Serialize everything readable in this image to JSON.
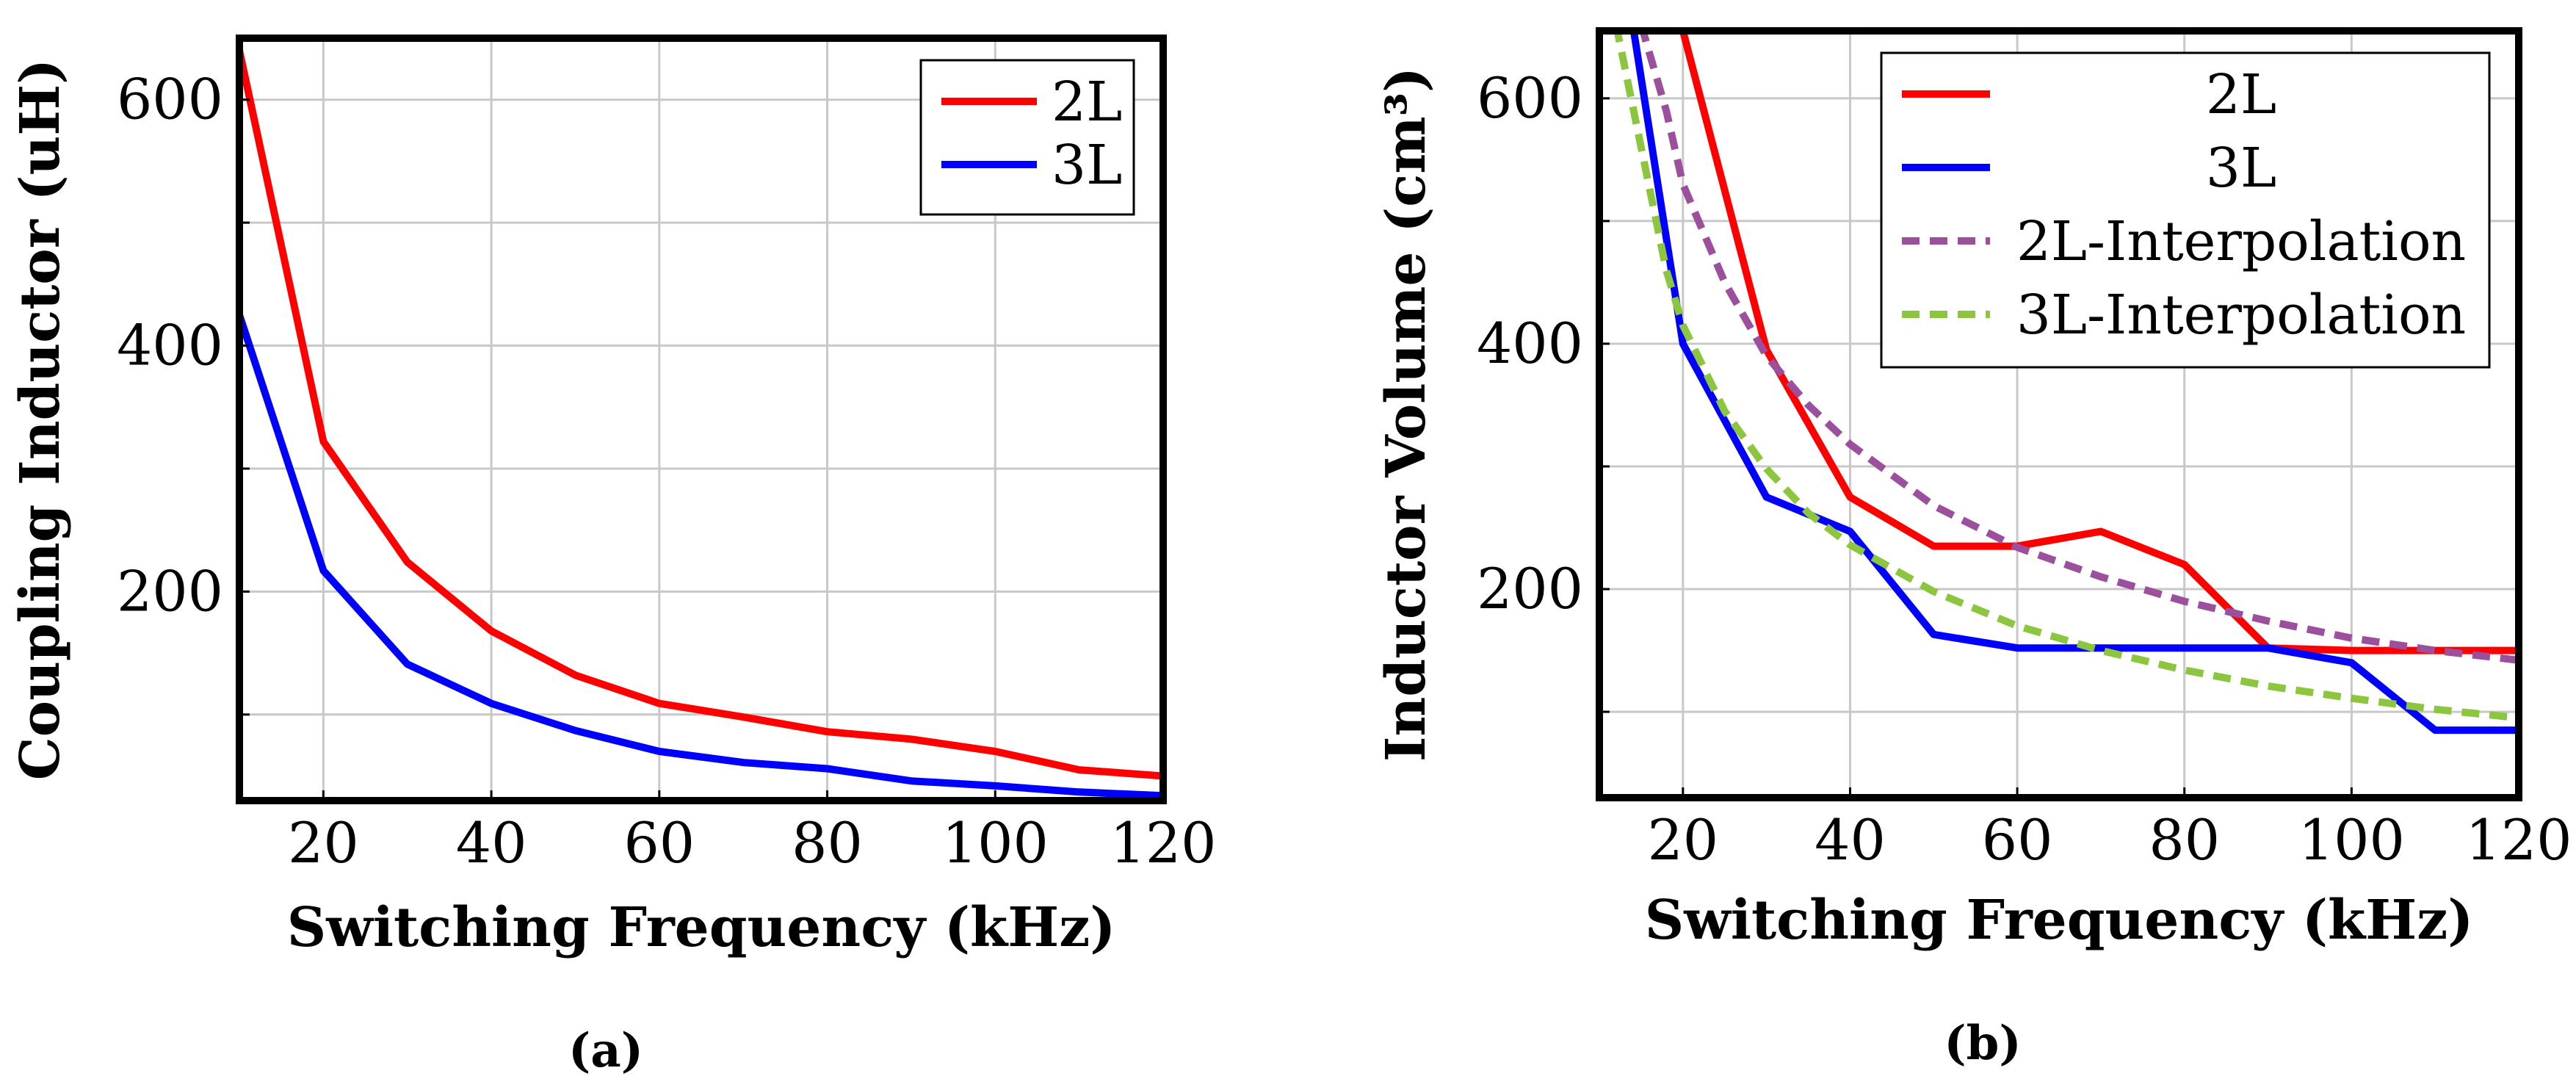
{
  "chart_data": [
    {
      "type": "line",
      "xlabel": "Switching Frequency (kHz)",
      "ylabel": "Coupling Inductor (uH)",
      "caption": "(a)",
      "xlim": [
        10,
        120
      ],
      "ylim": [
        30,
        650
      ],
      "xticks": [
        20,
        40,
        60,
        80,
        100,
        120
      ],
      "yticks": [
        200,
        400,
        600
      ],
      "legend_position": "top-right",
      "series": [
        {
          "name": "2L",
          "color": "#ff0000",
          "dash": "solid",
          "x": [
            10,
            20,
            30,
            40,
            50,
            60,
            70,
            80,
            90,
            100,
            110,
            120
          ],
          "y": [
            640,
            322,
            224,
            168,
            132,
            109,
            98,
            86,
            80,
            70,
            55,
            50
          ]
        },
        {
          "name": "3L",
          "color": "#0000ff",
          "dash": "solid",
          "x": [
            10,
            20,
            30,
            40,
            50,
            60,
            70,
            80,
            90,
            100,
            110,
            120
          ],
          "y": [
            425,
            217,
            141,
            109,
            87,
            70,
            61,
            56,
            46,
            42,
            37,
            34
          ]
        }
      ]
    },
    {
      "type": "line",
      "xlabel": "Switching Frequency (kHz)",
      "ylabel": "Inductor Volume (cm³)",
      "caption": "(b)",
      "xlim": [
        10,
        120
      ],
      "ylim": [
        30,
        655
      ],
      "xticks": [
        20,
        40,
        60,
        80,
        100,
        120
      ],
      "yticks": [
        200,
        400,
        600
      ],
      "legend_position": "top-right",
      "series": [
        {
          "name": "2L",
          "color": "#ff0000",
          "dash": "solid",
          "x": [
            12,
            20,
            30,
            40,
            50,
            60,
            70,
            80,
            90,
            100,
            110,
            120
          ],
          "y": [
            660,
            655,
            395,
            275,
            235,
            235,
            247,
            220,
            152,
            150,
            150,
            150
          ]
        },
        {
          "name": "3L",
          "color": "#0000ff",
          "dash": "solid",
          "x": [
            14,
            20,
            30,
            40,
            50,
            60,
            70,
            80,
            90,
            100,
            110,
            120
          ],
          "y": [
            660,
            400,
            275,
            247,
            163,
            152,
            152,
            152,
            152,
            140,
            85,
            85
          ]
        },
        {
          "name": "2L-Interpolation",
          "color": "#9b4f9c",
          "dash": "dashed",
          "x": [
            15,
            18,
            20,
            25,
            30,
            35,
            40,
            50,
            60,
            70,
            80,
            90,
            100,
            110,
            120
          ],
          "y": [
            660,
            590,
            530,
            450,
            390,
            350,
            318,
            268,
            234,
            210,
            190,
            174,
            160,
            150,
            142
          ]
        },
        {
          "name": "3L-Interpolation",
          "color": "#8cc63f",
          "dash": "dashed",
          "x": [
            12,
            15,
            18,
            20,
            25,
            30,
            35,
            40,
            50,
            60,
            70,
            80,
            90,
            100,
            110,
            120
          ],
          "y": [
            660,
            560,
            460,
            415,
            345,
            298,
            262,
            236,
            198,
            170,
            150,
            134,
            121,
            111,
            102,
            95
          ]
        }
      ]
    }
  ]
}
